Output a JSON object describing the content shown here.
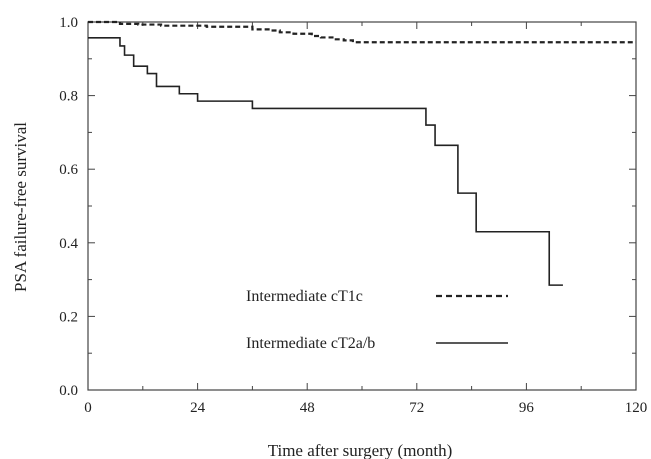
{
  "chart_data": {
    "type": "line",
    "title": "",
    "xlabel": "Time after surgery (month)",
    "ylabel": "PSA failure-free survival",
    "xlim": [
      0,
      120
    ],
    "ylim": [
      0,
      1.0
    ],
    "x_ticks": [
      0,
      24,
      48,
      72,
      96,
      120
    ],
    "x_tick_labels": [
      "0",
      "24",
      "48",
      "72",
      "96",
      "120"
    ],
    "y_ticks": [
      0,
      0.2,
      0.4,
      0.6,
      0.8,
      1.0
    ],
    "y_tick_labels": [
      "0.0",
      "0.2",
      "0.4",
      "0.6",
      "0.8",
      "1.0"
    ],
    "grid": false,
    "legend_position": "lower-center",
    "series": [
      {
        "name": "Intermediate cT1c",
        "line_style": "dashed",
        "color": "#222222",
        "x": [
          0,
          7,
          11,
          16,
          20,
          26,
          30,
          36,
          40,
          42,
          45,
          49,
          51,
          54,
          56,
          58,
          120
        ],
        "y": [
          1.0,
          0.995,
          0.993,
          0.99,
          0.99,
          0.987,
          0.987,
          0.98,
          0.977,
          0.972,
          0.968,
          0.962,
          0.958,
          0.953,
          0.95,
          0.945,
          0.945
        ]
      },
      {
        "name": "Intermediate cT2a/b",
        "line_style": "solid",
        "color": "#222222",
        "x": [
          0,
          6,
          7,
          8,
          10,
          13,
          15,
          20,
          24,
          36,
          72,
          74,
          76,
          80,
          81,
          84,
          85,
          86,
          100,
          101,
          104
        ],
        "y": [
          0.957,
          0.957,
          0.935,
          0.91,
          0.88,
          0.86,
          0.825,
          0.805,
          0.785,
          0.765,
          0.765,
          0.72,
          0.665,
          0.665,
          0.535,
          0.535,
          0.43,
          0.43,
          0.43,
          0.285,
          0.285
        ]
      }
    ]
  }
}
